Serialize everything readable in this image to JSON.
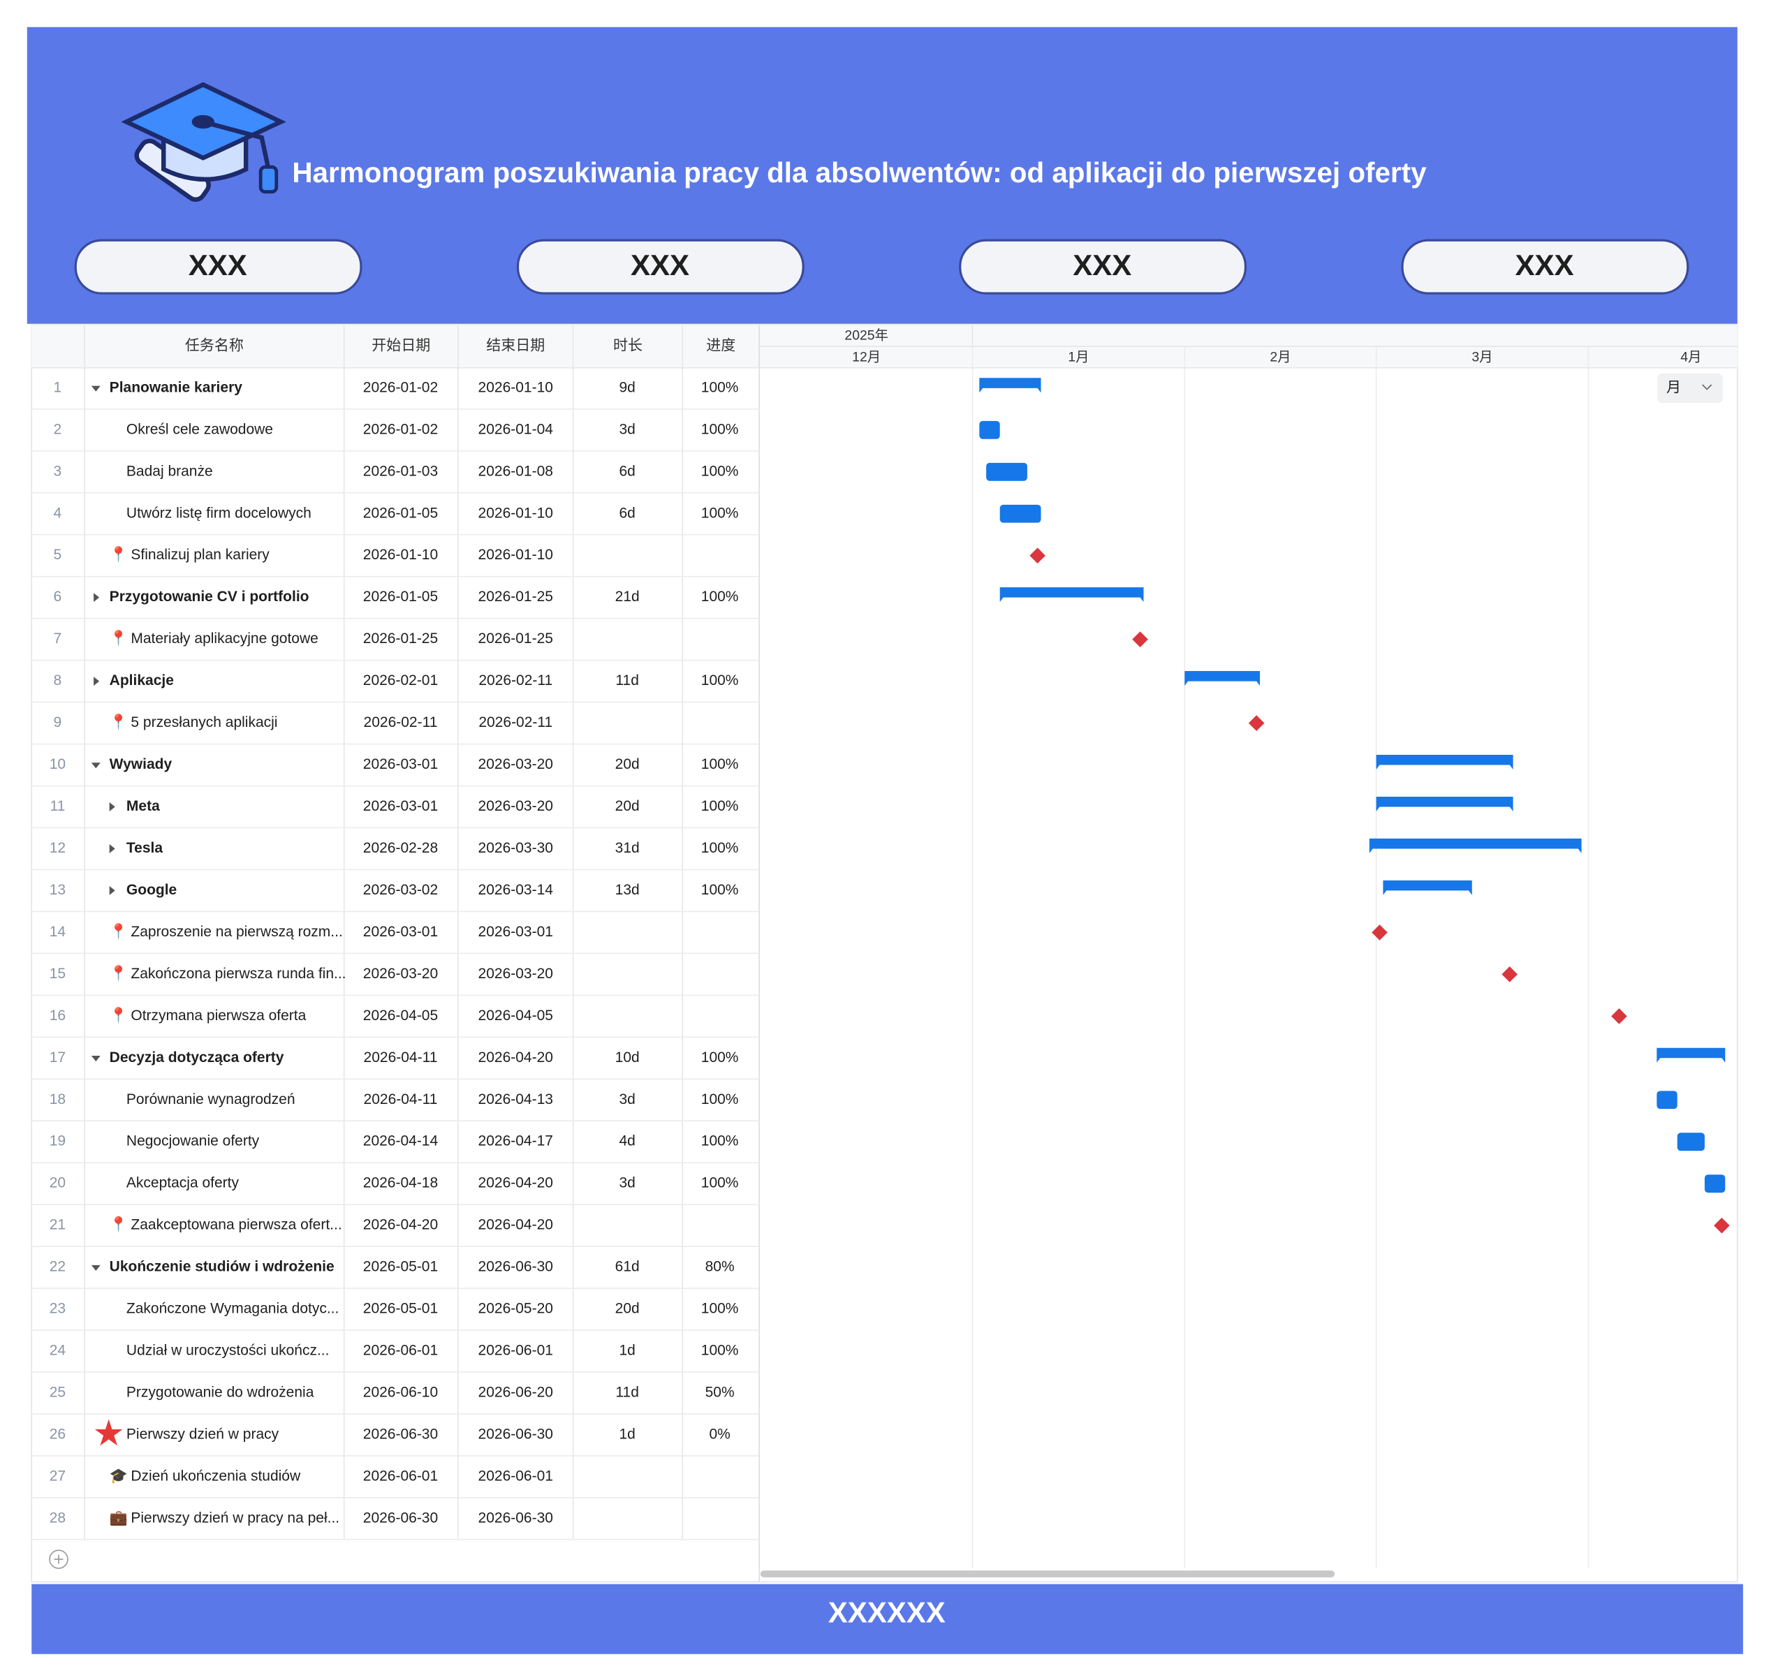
{
  "header": {
    "title": "Harmonogram poszukiwania pracy dla absolwentów: od aplikacji do pierwszej oferty",
    "buttons": [
      "XXX",
      "XXX",
      "XXX",
      "XXX"
    ]
  },
  "table": {
    "columns": [
      "任务名称",
      "开始日期",
      "结束日期",
      "时长",
      "进度"
    ],
    "rows": [
      {
        "no": 1,
        "name": "Planowanie kariery",
        "start": "2026-01-02",
        "end": "2026-01-10",
        "duration": "9d",
        "progress": "100%",
        "toggle": "expanded"
      },
      {
        "no": 2,
        "name": "Określ cele zawodowe",
        "start": "2026-01-02",
        "end": "2026-01-04",
        "duration": "3d",
        "progress": "100%"
      },
      {
        "no": 3,
        "name": "Badaj branże",
        "start": "2026-01-03",
        "end": "2026-01-08",
        "duration": "6d",
        "progress": "100%"
      },
      {
        "no": 4,
        "name": "Utwórz listę firm docelowych",
        "start": "2026-01-05",
        "end": "2026-01-10",
        "duration": "6d",
        "progress": "100%"
      },
      {
        "no": 5,
        "icon": "📍",
        "name": "Sfinalizuj plan kariery",
        "start": "2026-01-10",
        "end": "2026-01-10"
      },
      {
        "no": 6,
        "name": "Przygotowanie CV i portfolio",
        "start": "2026-01-05",
        "end": "2026-01-25",
        "duration": "21d",
        "progress": "100%",
        "toggle": "collapsed"
      },
      {
        "no": 7,
        "icon": "📍",
        "name": "Materiały aplikacyjne gotowe",
        "start": "2026-01-25",
        "end": "2026-01-25"
      },
      {
        "no": 8,
        "name": "Aplikacje",
        "start": "2026-02-01",
        "end": "2026-02-11",
        "duration": "11d",
        "progress": "100%",
        "toggle": "collapsed"
      },
      {
        "no": 9,
        "icon": "📍",
        "name": "5 przesłanych aplikacji",
        "start": "2026-02-11",
        "end": "2026-02-11"
      },
      {
        "no": 10,
        "name": "Wywiady",
        "start": "2026-03-01",
        "end": "2026-03-20",
        "duration": "20d",
        "progress": "100%",
        "toggle": "expanded"
      },
      {
        "no": 11,
        "name": "Meta",
        "start": "2026-03-01",
        "end": "2026-03-20",
        "duration": "20d",
        "progress": "100%",
        "toggle": "collapsed"
      },
      {
        "no": 12,
        "name": "Tesla",
        "start": "2026-02-28",
        "end": "2026-03-30",
        "duration": "31d",
        "progress": "100%",
        "toggle": "collapsed"
      },
      {
        "no": 13,
        "name": "Google",
        "start": "2026-03-02",
        "end": "2026-03-14",
        "duration": "13d",
        "progress": "100%",
        "toggle": "collapsed"
      },
      {
        "no": 14,
        "icon": "📍",
        "name": "Zaproszenie na pierwszą rozm...",
        "start": "2026-03-01",
        "end": "2026-03-01"
      },
      {
        "no": 15,
        "icon": "📍",
        "name": "Zakończona pierwsza runda fin...",
        "start": "2026-03-20",
        "end": "2026-03-20"
      },
      {
        "no": 16,
        "icon": "📍",
        "name": "Otrzymana pierwsza oferta",
        "start": "2026-04-05",
        "end": "2026-04-05"
      },
      {
        "no": 17,
        "name": "Decyzja dotycząca oferty",
        "start": "2026-04-11",
        "end": "2026-04-20",
        "duration": "10d",
        "progress": "100%",
        "toggle": "expanded"
      },
      {
        "no": 18,
        "name": "Porównanie wynagrodzeń",
        "start": "2026-04-11",
        "end": "2026-04-13",
        "duration": "3d",
        "progress": "100%"
      },
      {
        "no": 19,
        "name": "Negocjowanie oferty",
        "start": "2026-04-14",
        "end": "2026-04-17",
        "duration": "4d",
        "progress": "100%"
      },
      {
        "no": 20,
        "name": "Akceptacja oferty",
        "start": "2026-04-18",
        "end": "2026-04-20",
        "duration": "3d",
        "progress": "100%"
      },
      {
        "no": 21,
        "icon": "📍",
        "name": "Zaakceptowana pierwsza ofert...",
        "start": "2026-04-20",
        "end": "2026-04-20"
      },
      {
        "no": 22,
        "name": "Ukończenie studiów i wdrożenie",
        "start": "2026-05-01",
        "end": "2026-06-30",
        "duration": "61d",
        "progress": "80%",
        "toggle": "expanded"
      },
      {
        "no": 23,
        "name": "Zakończone Wymagania dotyc...",
        "start": "2026-05-01",
        "end": "2026-05-20",
        "duration": "20d",
        "progress": "100%"
      },
      {
        "no": 24,
        "name": "Udział w uroczystości ukończ...",
        "start": "2026-06-01",
        "end": "2026-06-01",
        "duration": "1d",
        "progress": "100%"
      },
      {
        "no": 25,
        "name": "Przygotowanie do wdrożenia",
        "start": "2026-06-10",
        "end": "2026-06-20",
        "duration": "11d",
        "progress": "50%"
      },
      {
        "no": 26,
        "icon": "★",
        "name": "Pierwszy dzień w pracy",
        "start": "2026-06-30",
        "end": "2026-06-30",
        "duration": "1d",
        "progress": "0%"
      },
      {
        "no": 27,
        "icon": "🎓",
        "name": "Dzień ukończenia studiów",
        "start": "2026-06-01",
        "end": "2026-06-01"
      },
      {
        "no": 28,
        "icon": "💼",
        "name": "Pierwszy dzień w pracy na peł...",
        "start": "2026-06-30",
        "end": "2026-06-30"
      }
    ]
  },
  "timeline": {
    "year": "2025年",
    "months": [
      "12月",
      "1月",
      "2月",
      "3月",
      "4月"
    ],
    "view": "月"
  },
  "footer": {
    "text": "XXXXXX"
  }
}
